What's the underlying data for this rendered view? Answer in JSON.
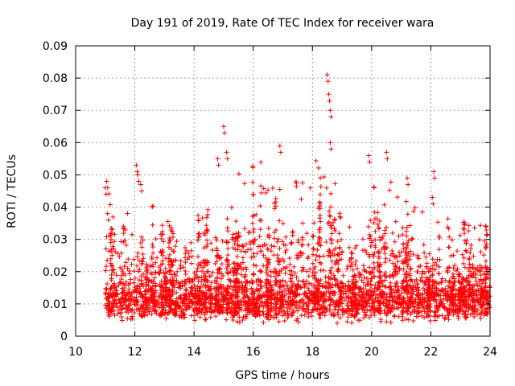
{
  "chart_data": {
    "type": "scatter",
    "title": "Day 191 of 2019, Rate Of TEC Index for receiver wara",
    "xlabel": "GPS time / hours",
    "ylabel": "ROTI / TECUs",
    "xlim": [
      10,
      24
    ],
    "ylim": [
      0,
      0.09
    ],
    "x_ticks": [
      10,
      12,
      14,
      16,
      18,
      20,
      22,
      24
    ],
    "x_tick_labels": [
      "10",
      "12",
      "14",
      "16",
      "18",
      "20",
      "22",
      "24"
    ],
    "y_ticks": [
      0,
      0.01,
      0.02,
      0.03,
      0.04,
      0.05,
      0.06,
      0.07,
      0.08,
      0.09
    ],
    "y_tick_labels": [
      "0",
      "0.01",
      "0.02",
      "0.03",
      "0.04",
      "0.05",
      "0.06",
      "0.07",
      "0.08",
      "0.09"
    ],
    "grid": true,
    "marker": "+",
    "series": [
      {
        "name": "wara",
        "color": "#ff0000",
        "x_start": 11.0,
        "x_end": 24.0,
        "typical_range": [
          0.003,
          0.03
        ],
        "highlights": [
          {
            "x": 11.0,
            "y": 0.046
          },
          {
            "x": 11.05,
            "y": 0.048
          },
          {
            "x": 11.08,
            "y": 0.038
          },
          {
            "x": 12.05,
            "y": 0.053
          },
          {
            "x": 12.1,
            "y": 0.05
          },
          {
            "x": 12.2,
            "y": 0.047
          },
          {
            "x": 14.8,
            "y": 0.055
          },
          {
            "x": 15.0,
            "y": 0.065
          },
          {
            "x": 15.1,
            "y": 0.057
          },
          {
            "x": 16.9,
            "y": 0.059
          },
          {
            "x": 18.5,
            "y": 0.081
          },
          {
            "x": 18.55,
            "y": 0.075
          },
          {
            "x": 18.6,
            "y": 0.07
          },
          {
            "x": 18.6,
            "y": 0.06
          },
          {
            "x": 19.9,
            "y": 0.056
          },
          {
            "x": 20.5,
            "y": 0.057
          },
          {
            "x": 21.2,
            "y": 0.049
          },
          {
            "x": 22.1,
            "y": 0.051
          },
          {
            "x": 22.05,
            "y": 0.043
          }
        ]
      }
    ]
  }
}
